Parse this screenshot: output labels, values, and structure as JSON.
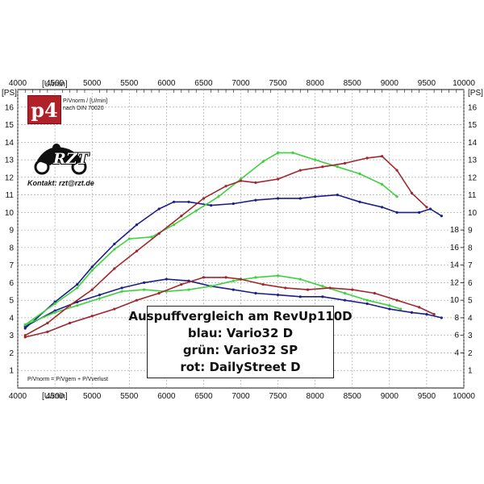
{
  "chart_data": {
    "type": "line",
    "x_unit": "[U/min]",
    "y_unit_left": "[PS]",
    "y_unit_right": "[PS]",
    "x_ticks": [
      "4000",
      "4500",
      "5000",
      "5500",
      "6000",
      "6500",
      "7000",
      "7500",
      "8000",
      "8500",
      "9000",
      "9500",
      "10000"
    ],
    "y_ticks_left": [
      "1",
      "2",
      "3",
      "4",
      "5",
      "6",
      "7",
      "8",
      "9",
      "10",
      "11",
      "12",
      "13",
      "14",
      "15",
      "16"
    ],
    "y_ticks_right_power": [
      "1",
      "2",
      "3",
      "4",
      "5",
      "6",
      "7",
      "8",
      "9",
      "10",
      "11",
      "12",
      "13",
      "14",
      "15",
      "16"
    ],
    "y_ticks_right_torque": [
      "4",
      "6",
      "8",
      "10",
      "12",
      "14",
      "16",
      "18"
    ],
    "xlim": [
      4000,
      10000
    ],
    "ylim": [
      0,
      17
    ],
    "torque_ylim": [
      0,
      34
    ],
    "grid": true,
    "series": [
      {
        "name": "blau: Vario32 D",
        "color": "#1c1f8a",
        "power": [
          [
            4100,
            3.4
          ],
          [
            4500,
            4.9
          ],
          [
            4800,
            5.9
          ],
          [
            5000,
            6.9
          ],
          [
            5300,
            8.2
          ],
          [
            5600,
            9.3
          ],
          [
            5900,
            10.2
          ],
          [
            6100,
            10.6
          ],
          [
            6300,
            10.6
          ],
          [
            6600,
            10.4
          ],
          [
            6900,
            10.5
          ],
          [
            7200,
            10.7
          ],
          [
            7500,
            10.8
          ],
          [
            7800,
            10.8
          ],
          [
            8000,
            10.9
          ],
          [
            8300,
            11.0
          ],
          [
            8600,
            10.6
          ],
          [
            8900,
            10.3
          ],
          [
            9100,
            10.0
          ],
          [
            9400,
            10.0
          ],
          [
            9550,
            10.2
          ],
          [
            9700,
            9.8
          ]
        ],
        "torque": [
          [
            4100,
            7.0
          ],
          [
            4500,
            8.8
          ],
          [
            4800,
            9.8
          ],
          [
            5100,
            10.6
          ],
          [
            5400,
            11.4
          ],
          [
            5700,
            12.0
          ],
          [
            6000,
            12.4
          ],
          [
            6300,
            12.2
          ],
          [
            6600,
            11.6
          ],
          [
            6900,
            11.2
          ],
          [
            7200,
            10.8
          ],
          [
            7500,
            10.6
          ],
          [
            7800,
            10.4
          ],
          [
            8100,
            10.4
          ],
          [
            8400,
            10.0
          ],
          [
            8700,
            9.6
          ],
          [
            9000,
            9.0
          ],
          [
            9300,
            8.6
          ],
          [
            9500,
            8.4
          ],
          [
            9700,
            8.0
          ]
        ]
      },
      {
        "name": "grün: Vario32 SP",
        "color": "#3ed23e",
        "power": [
          [
            4100,
            3.6
          ],
          [
            4500,
            4.8
          ],
          [
            4800,
            5.7
          ],
          [
            5000,
            6.7
          ],
          [
            5300,
            7.9
          ],
          [
            5500,
            8.5
          ],
          [
            5800,
            8.6
          ],
          [
            6100,
            9.3
          ],
          [
            6400,
            10.1
          ],
          [
            6700,
            10.9
          ],
          [
            7000,
            11.9
          ],
          [
            7300,
            12.9
          ],
          [
            7500,
            13.4
          ],
          [
            7700,
            13.4
          ],
          [
            8000,
            13.0
          ],
          [
            8300,
            12.6
          ],
          [
            8600,
            12.2
          ],
          [
            8900,
            11.6
          ],
          [
            9100,
            10.9
          ]
        ],
        "torque": [
          [
            4100,
            7.2
          ],
          [
            4500,
            8.6
          ],
          [
            4800,
            9.4
          ],
          [
            5100,
            10.2
          ],
          [
            5400,
            11.0
          ],
          [
            5700,
            11.2
          ],
          [
            6000,
            11.0
          ],
          [
            6300,
            11.2
          ],
          [
            6600,
            11.6
          ],
          [
            6900,
            12.2
          ],
          [
            7200,
            12.6
          ],
          [
            7500,
            12.8
          ],
          [
            7800,
            12.4
          ],
          [
            8100,
            11.6
          ],
          [
            8400,
            10.8
          ],
          [
            8700,
            10.0
          ],
          [
            9000,
            9.4
          ],
          [
            9150,
            9.0
          ]
        ]
      },
      {
        "name": "rot: DailyStreet D",
        "color": "#a2262e",
        "power": [
          [
            4100,
            3.0
          ],
          [
            4400,
            3.7
          ],
          [
            4700,
            4.7
          ],
          [
            5000,
            5.6
          ],
          [
            5300,
            6.8
          ],
          [
            5600,
            7.8
          ],
          [
            5900,
            8.8
          ],
          [
            6200,
            9.8
          ],
          [
            6500,
            10.8
          ],
          [
            6800,
            11.5
          ],
          [
            7000,
            11.8
          ],
          [
            7200,
            11.7
          ],
          [
            7500,
            11.9
          ],
          [
            7800,
            12.4
          ],
          [
            8100,
            12.6
          ],
          [
            8400,
            12.8
          ],
          [
            8700,
            13.1
          ],
          [
            8900,
            13.2
          ],
          [
            9100,
            12.4
          ],
          [
            9300,
            11.1
          ],
          [
            9500,
            10.3
          ]
        ],
        "torque": [
          [
            4100,
            5.8
          ],
          [
            4400,
            6.4
          ],
          [
            4700,
            7.4
          ],
          [
            5000,
            8.2
          ],
          [
            5300,
            9.0
          ],
          [
            5600,
            10.0
          ],
          [
            5900,
            10.8
          ],
          [
            6200,
            11.8
          ],
          [
            6500,
            12.6
          ],
          [
            6800,
            12.6
          ],
          [
            7000,
            12.4
          ],
          [
            7300,
            11.8
          ],
          [
            7600,
            11.4
          ],
          [
            7900,
            11.2
          ],
          [
            8200,
            11.4
          ],
          [
            8500,
            11.2
          ],
          [
            8800,
            10.8
          ],
          [
            9100,
            10.0
          ],
          [
            9400,
            9.2
          ],
          [
            9600,
            8.4
          ]
        ]
      }
    ]
  },
  "legend": {
    "title": "Auspuffvergleich am RevUp110D",
    "line1": "blau: Vario32 D",
    "line2": "grün: Vario32 SP",
    "line3": "rot: DailyStreet D"
  },
  "logo": {
    "p4": "p4",
    "rzt": "RZT",
    "contact": "Kontakt: rzt@rzt.de"
  },
  "notes": {
    "norm_line1": "P/Vnorm / [U/min]",
    "norm_line2": "nach DIN 70020",
    "footer": "P/Vnorm = P/Vgem + P/Vverlust"
  },
  "colors": {
    "grid": "#9a9a9a",
    "axis": "#111111"
  }
}
